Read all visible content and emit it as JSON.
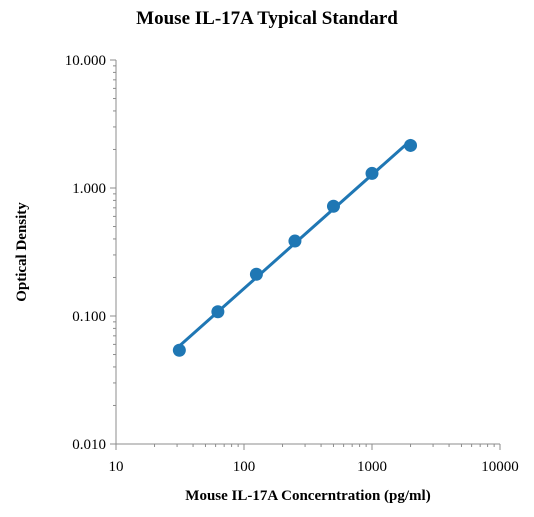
{
  "chart_data": {
    "type": "scatter",
    "title": "Mouse IL-17A Typical Standard",
    "xlabel": "Mouse IL-17A Concerntration (pg/ml)",
    "ylabel": "Optical Density",
    "xscale": "log",
    "yscale": "log",
    "xlim": [
      10,
      10000
    ],
    "ylim": [
      0.01,
      10
    ],
    "xticks": [
      "10",
      "100",
      "1000",
      "10000"
    ],
    "yticks": [
      "0.010",
      "0.100",
      "1.000",
      "10.000"
    ],
    "grid": false,
    "legend": "none",
    "series": [
      {
        "x": [
          31.25,
          62.5,
          125,
          250,
          500,
          1000,
          2000
        ],
        "y": [
          0.054,
          0.108,
          0.212,
          0.385,
          0.72,
          1.3,
          2.15
        ],
        "marker": "circle",
        "trendline": "power"
      }
    ],
    "colors": {
      "series": "#1f77b4",
      "axis": "#8c8c8c"
    }
  }
}
